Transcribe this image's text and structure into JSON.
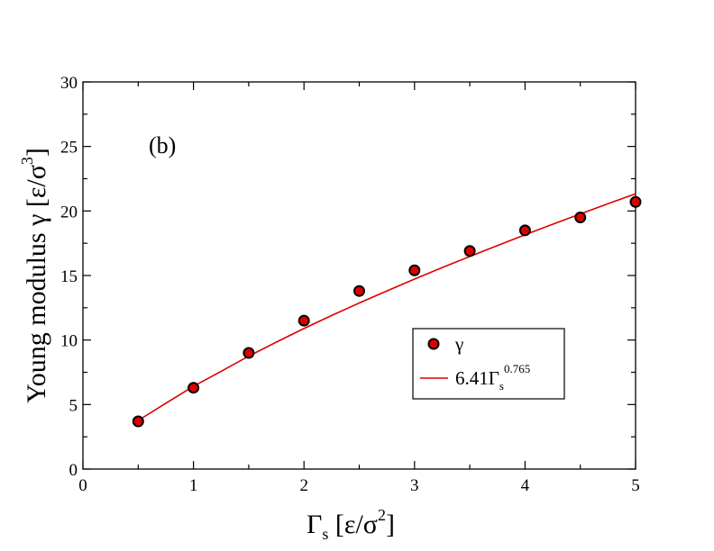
{
  "chart_data": {
    "type": "scatter",
    "panel_label": "(b)",
    "xlabel": {
      "symbol": "Γ",
      "sub": "s",
      "open": " [ε/σ",
      "sup": "2",
      "close": "]"
    },
    "ylabel": {
      "main": "Young modulus γ [ε/σ",
      "sup": "3",
      "close": "]"
    },
    "xlim": [
      0,
      5
    ],
    "ylim": [
      0,
      30
    ],
    "x_ticks": [
      0,
      1,
      2,
      3,
      4,
      5
    ],
    "y_ticks": [
      0,
      5,
      10,
      15,
      20,
      25,
      30
    ],
    "x_tick_labels": [
      "0",
      "1",
      "2",
      "3",
      "4",
      "5"
    ],
    "y_tick_labels": [
      "0",
      "5",
      "10",
      "15",
      "20",
      "25",
      "30"
    ],
    "grid": false,
    "legend_position": "center-right",
    "series": [
      {
        "name": "γ",
        "kind": "points",
        "color": "#dd0000",
        "edge_color": "#000000",
        "x": [
          0.5,
          1.0,
          1.5,
          2.0,
          2.5,
          3.0,
          3.5,
          4.0,
          4.5,
          5.0
        ],
        "y": [
          3.7,
          6.3,
          9.0,
          11.5,
          13.8,
          15.4,
          16.9,
          18.5,
          19.5,
          20.7
        ]
      },
      {
        "name": "6.41Γs0.765",
        "legend_parts": {
          "coef": "6.41Γ",
          "sub": "s",
          "sup": "0.765"
        },
        "kind": "fit_line",
        "color": "#dd0000",
        "x": [
          0.5,
          0.75,
          1.0,
          1.25,
          1.5,
          1.75,
          2.0,
          2.25,
          2.5,
          2.75,
          3.0,
          3.25,
          3.5,
          3.75,
          4.0,
          4.25,
          4.5,
          4.75,
          5.0
        ],
        "y": [
          3.77,
          5.1,
          6.41,
          7.58,
          8.75,
          9.84,
          10.89,
          11.9,
          12.87,
          13.81,
          14.72,
          15.61,
          16.47,
          17.32,
          18.16,
          18.97,
          19.77,
          20.56,
          21.33
        ]
      }
    ]
  }
}
